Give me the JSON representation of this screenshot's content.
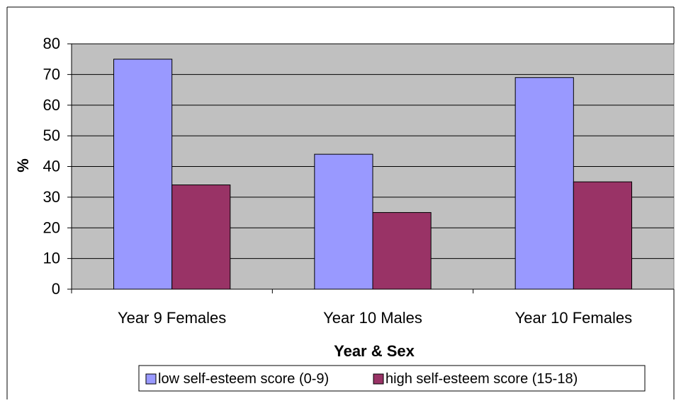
{
  "chart_data": {
    "type": "bar",
    "title": "",
    "xlabel": "Year & Sex",
    "ylabel": "%",
    "categories": [
      "Year 9 Females",
      "Year 10 Males",
      "Year 10 Females"
    ],
    "series": [
      {
        "name": "low self-esteem score (0-9)",
        "values": [
          75,
          44,
          69
        ],
        "color": "#9999ff"
      },
      {
        "name": "high self-esteem score (15-18)",
        "values": [
          34,
          25,
          35
        ],
        "color": "#993366"
      }
    ],
    "ylim": [
      0,
      80
    ],
    "yticks": [
      0,
      10,
      20,
      30,
      40,
      50,
      60,
      70,
      80
    ],
    "grid": true,
    "legend_position": "bottom",
    "colors": {
      "plot_background": "#c0c0c0",
      "gridline": "#000000",
      "frame": "#000000"
    }
  }
}
